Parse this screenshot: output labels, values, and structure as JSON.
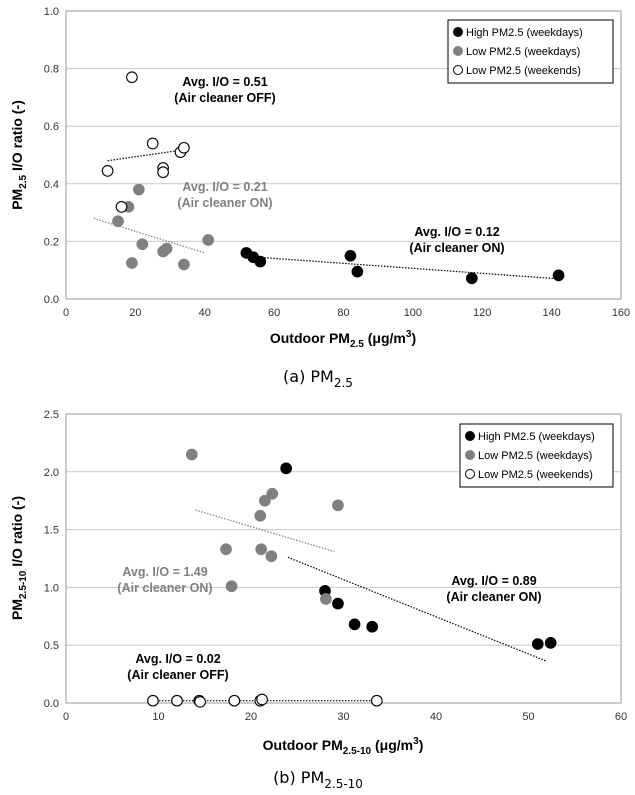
{
  "chart_data": [
    {
      "type": "scatter",
      "caption": "(a) PM",
      "caption_sub": "2.5",
      "xlabel": "Outdoor PM",
      "xlabel_sub": "2.5",
      "xlabel_unit": " (μg/m",
      "xlabel_sup": "3",
      "xlabel_end": ")",
      "ylabel": "PM",
      "ylabel_sub": "2.5",
      "ylabel_rest": " I/O ratio (-)",
      "xlim": [
        0,
        160
      ],
      "ylim": [
        0,
        1.0
      ],
      "xticks": [
        "0",
        "20",
        "40",
        "60",
        "80",
        "100",
        "120",
        "140",
        "160"
      ],
      "yticks": [
        "0.0",
        "0.2",
        "0.4",
        "0.6",
        "0.8",
        "1.0"
      ],
      "grid": true,
      "legend_position": "top-right",
      "series": [
        {
          "name": "High PM2.5 (weekdays)",
          "color": "#000000",
          "fill": "#000000",
          "points": [
            [
              52,
              0.16
            ],
            [
              54,
              0.145
            ],
            [
              56,
              0.13
            ],
            [
              82,
              0.15
            ],
            [
              84,
              0.095
            ],
            [
              117,
              0.072
            ],
            [
              142,
              0.082
            ]
          ],
          "trend": [
            [
              52,
              0.148
            ],
            [
              142,
              0.07
            ]
          ]
        },
        {
          "name": "Low PM2.5 (weekdays)",
          "color": "#808080",
          "fill": "#808080",
          "points": [
            [
              15,
              0.27
            ],
            [
              18,
              0.32
            ],
            [
              19,
              0.125
            ],
            [
              21,
              0.38
            ],
            [
              22,
              0.19
            ],
            [
              28,
              0.165
            ],
            [
              29,
              0.175
            ],
            [
              34,
              0.12
            ],
            [
              41,
              0.205
            ]
          ],
          "trend": [
            [
              8,
              0.28
            ],
            [
              40,
              0.16
            ]
          ]
        },
        {
          "name": "Low PM2.5 (weekends)",
          "color": "#000000",
          "fill": "#ffffff",
          "points": [
            [
              12,
              0.445
            ],
            [
              16,
              0.32
            ],
            [
              19,
              0.77
            ],
            [
              25,
              0.54
            ],
            [
              28,
              0.455
            ],
            [
              28,
              0.44
            ],
            [
              33,
              0.51
            ],
            [
              34,
              0.525
            ]
          ],
          "trend": [
            [
              12,
              0.48
            ],
            [
              35,
              0.52
            ]
          ]
        }
      ],
      "annotations": [
        {
          "line1": "Avg. I/O = 0.51",
          "line2": "(Air cleaner OFF)",
          "color": "#000000"
        },
        {
          "line1": "Avg. I/O = 0.21",
          "line2": "(Air cleaner ON)",
          "color": "#808080"
        },
        {
          "line1": "Avg. I/O = 0.12",
          "line2": "(Air cleaner ON)",
          "color": "#000000"
        }
      ]
    },
    {
      "type": "scatter",
      "caption": "(b) PM",
      "caption_sub": "2.5-10",
      "xlabel": "Outdoor PM",
      "xlabel_sub": "2.5-10",
      "xlabel_unit": " (μg/m",
      "xlabel_sup": "3",
      "xlabel_end": ")",
      "ylabel": "PM",
      "ylabel_sub": "2.5-10",
      "ylabel_rest": " I/O ratio (-)",
      "xlim": [
        0,
        60
      ],
      "ylim": [
        0,
        2.5
      ],
      "xticks": [
        "0",
        "10",
        "20",
        "30",
        "40",
        "50",
        "60"
      ],
      "yticks": [
        "0.0",
        "0.5",
        "1.0",
        "1.5",
        "2.0",
        "2.5"
      ],
      "grid": true,
      "legend_position": "top-right",
      "series": [
        {
          "name": "High PM2.5 (weekdays)",
          "color": "#000000",
          "fill": "#000000",
          "points": [
            [
              23.8,
              2.03
            ],
            [
              28,
              0.97
            ],
            [
              29.4,
              0.86
            ],
            [
              31.2,
              0.68
            ],
            [
              33.1,
              0.66
            ],
            [
              51,
              0.51
            ],
            [
              52.4,
              0.52
            ]
          ],
          "trend": [
            [
              24,
              1.26
            ],
            [
              52,
              0.36
            ]
          ]
        },
        {
          "name": "Low PM2.5 (weekdays)",
          "color": "#808080",
          "fill": "#808080",
          "points": [
            [
              13.6,
              2.15
            ],
            [
              17.3,
              1.33
            ],
            [
              17.9,
              1.01
            ],
            [
              21,
              1.62
            ],
            [
              21.1,
              1.33
            ],
            [
              21.5,
              1.75
            ],
            [
              22.2,
              1.27
            ],
            [
              22.3,
              1.81
            ],
            [
              28.1,
              0.9
            ],
            [
              29.4,
              1.71
            ]
          ],
          "trend": [
            [
              14,
              1.67
            ],
            [
              29,
              1.31
            ]
          ]
        },
        {
          "name": "Low PM2.5 (weekends)",
          "color": "#000000",
          "fill": "#ffffff",
          "points": [
            [
              9.4,
              0.02
            ],
            [
              12,
              0.02
            ],
            [
              14.4,
              0.02
            ],
            [
              14.5,
              0.01
            ],
            [
              18.2,
              0.02
            ],
            [
              21,
              0.02
            ],
            [
              21.2,
              0.03
            ],
            [
              33.6,
              0.02
            ]
          ],
          "trend": [
            [
              9.4,
              0.02
            ],
            [
              33.6,
              0.02
            ]
          ]
        }
      ],
      "annotations": [
        {
          "line1": "Avg. I/O = 1.49",
          "line2": "(Air cleaner ON)",
          "color": "#808080"
        },
        {
          "line1": "Avg. I/O = 0.89",
          "line2": "(Air cleaner ON)",
          "color": "#000000"
        },
        {
          "line1": "Avg. I/O = 0.02",
          "line2": "(Air cleaner OFF)",
          "color": "#000000"
        }
      ]
    }
  ]
}
